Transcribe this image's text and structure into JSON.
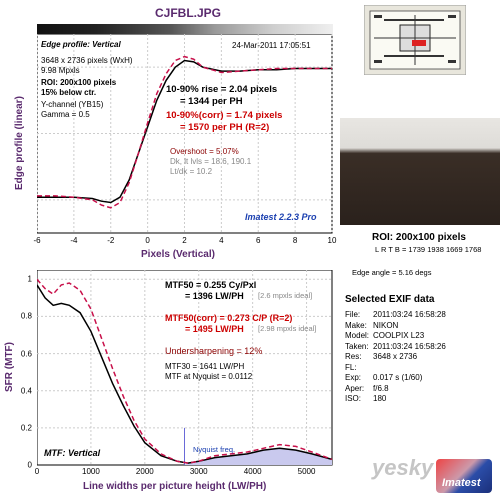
{
  "header": {
    "filename": "CJFBL.JPG"
  },
  "edge_panel": {
    "heading": "Edge profile: Vertical",
    "date": "24-Mar-2011 17:05:51",
    "dims": "3648 x 2736 pixels (WxH)",
    "mpxls": "9.98 Mpxls",
    "roi": "ROI: 200x100 pixels",
    "below": "15% below ctr.",
    "channel": "Y-channel (YB15)",
    "gamma": "Gamma = 0.5",
    "rise": "10-90% rise = 2.04 pixels",
    "per_ph": "= 1344 per PH",
    "rise_corr": "10-90%(corr) = 1.74 pixels",
    "per_ph_corr": "= 1570 per PH  (R=2)",
    "overshoot": "Overshoot = 5.07%",
    "dk_lt": "Dk, lt lvls = 18.6, 190.1",
    "ltdk": "Lt/dk = 10.2",
    "version": "Imatest 2.2.3 Pro",
    "ylabel": "Edge profile (linear)",
    "xlabel": "Pixels (Vertical)",
    "xticks": [
      "-6",
      "-4",
      "-2",
      "0",
      "2",
      "4",
      "6",
      "8",
      "10"
    ]
  },
  "mtf_panel": {
    "mtf50": "MTF50 = 0.255 Cy/Pxl",
    "mtf50_lw": "= 1396 LW/PH",
    "ideal1": "[2.6 mpxls ideal]",
    "mtf50c": "MTF50(corr) = 0.273 C/P  (R=2)",
    "mtf50c_lw": "= 1495 LW/PH",
    "ideal2": "[2.98 mpxls ideal]",
    "undersharp": "Undersharpening = 12%",
    "mtf30": "MTF30 = 1641 LW/PH",
    "nyq": "MTF at Nyquist = 0.0112",
    "heading": "MTF: Vertical",
    "nyquist_label": "Nyquist freq.",
    "ylabel": "SFR (MTF)",
    "xlabel": "Line widths per picture height (LW/PH)",
    "xticks": [
      "0",
      "1000",
      "2000",
      "3000",
      "4000",
      "5000"
    ],
    "yticks": [
      "0",
      "0.2",
      "0.4",
      "0.6",
      "0.8",
      "1"
    ]
  },
  "right_panel": {
    "roi": "ROI: 200x100 pixels",
    "lrtb": "L R T B = 1739 1938  1669 1768",
    "edge_angle": "Edge angle = 5.16 degs",
    "exif_title": "Selected EXIF data",
    "exif": [
      {
        "k": "File:",
        "v": "2011:03:24 16:58:28"
      },
      {
        "k": "Make:",
        "v": "NIKON"
      },
      {
        "k": "Model:",
        "v": "COOLPIX L23"
      },
      {
        "k": "Taken:",
        "v": "2011:03:24 16:58:26"
      },
      {
        "k": "Res:",
        "v": "3648 x 2736"
      },
      {
        "k": "FL:",
        "v": ""
      },
      {
        "k": "Exp:",
        "v": "0.017 s  (1/60)"
      },
      {
        "k": "Aper:",
        "v": "f/6.8"
      },
      {
        "k": "ISO:",
        "v": "180"
      }
    ]
  },
  "watermark": {
    "text": "yesky",
    "brand": "Imatest"
  },
  "chart_data": [
    {
      "type": "line",
      "title": "Edge profile: Vertical",
      "xlabel": "Pixels (Vertical)",
      "ylabel": "Edge profile (linear)",
      "xlim": [
        -6,
        10
      ],
      "series": [
        {
          "x": [
            -6,
            -5,
            -4,
            -3,
            -2.5,
            -2,
            -1.5,
            -1,
            -0.5,
            0,
            0.5,
            1,
            1.5,
            2,
            2.5,
            3,
            4,
            5,
            6,
            7,
            8,
            9,
            10
          ],
          "y": [
            0.02,
            0.02,
            0.02,
            0.01,
            -0.01,
            -0.02,
            0.02,
            0.15,
            0.35,
            0.55,
            0.75,
            0.9,
            1.0,
            1.05,
            1.04,
            1.0,
            0.97,
            0.97,
            0.98,
            0.98,
            0.99,
            0.99,
            0.99
          ]
        },
        {
          "x": [
            -6,
            -5,
            -4,
            -3,
            -2.5,
            -2,
            -1.5,
            -1,
            -0.5,
            0,
            0.5,
            1,
            1.5,
            2,
            2.5,
            3,
            4,
            5,
            6,
            7,
            8,
            9,
            10
          ],
          "y": [
            0.03,
            0.03,
            0.02,
            0.0,
            -0.04,
            -0.06,
            -0.02,
            0.13,
            0.35,
            0.58,
            0.8,
            0.95,
            1.05,
            1.08,
            1.06,
            1.0,
            0.96,
            0.97,
            0.98,
            0.99,
            0.99,
            0.99,
            0.99
          ]
        }
      ]
    },
    {
      "type": "line",
      "title": "MTF: Vertical",
      "xlabel": "Line widths per picture height (LW/PH)",
      "ylabel": "SFR (MTF)",
      "xlim": [
        0,
        5472
      ],
      "ylim": [
        0,
        1.05
      ],
      "series": [
        {
          "x": [
            0,
            150,
            300,
            450,
            600,
            800,
            1000,
            1200,
            1400,
            1600,
            1800,
            2000,
            2300,
            2600,
            2800,
            3000,
            3300,
            3600,
            3900,
            4200,
            4500,
            4800,
            5100,
            5472
          ],
          "y": [
            0.97,
            0.9,
            0.86,
            0.87,
            0.86,
            0.82,
            0.72,
            0.58,
            0.44,
            0.32,
            0.21,
            0.12,
            0.05,
            0.02,
            0.01,
            0.02,
            0.04,
            0.05,
            0.06,
            0.08,
            0.09,
            0.08,
            0.06,
            0.03
          ]
        },
        {
          "x": [
            0,
            150,
            300,
            450,
            600,
            800,
            1000,
            1200,
            1400,
            1600,
            1800,
            2000,
            2300,
            2600,
            2800,
            3000,
            3300,
            3600,
            3900,
            4200,
            4500,
            4800,
            5100,
            5472
          ],
          "y": [
            1.0,
            0.95,
            0.92,
            0.97,
            0.98,
            0.94,
            0.84,
            0.68,
            0.52,
            0.37,
            0.24,
            0.14,
            0.06,
            0.02,
            0.01,
            0.02,
            0.05,
            0.06,
            0.07,
            0.09,
            0.11,
            0.1,
            0.07,
            0.03
          ]
        }
      ]
    }
  ]
}
